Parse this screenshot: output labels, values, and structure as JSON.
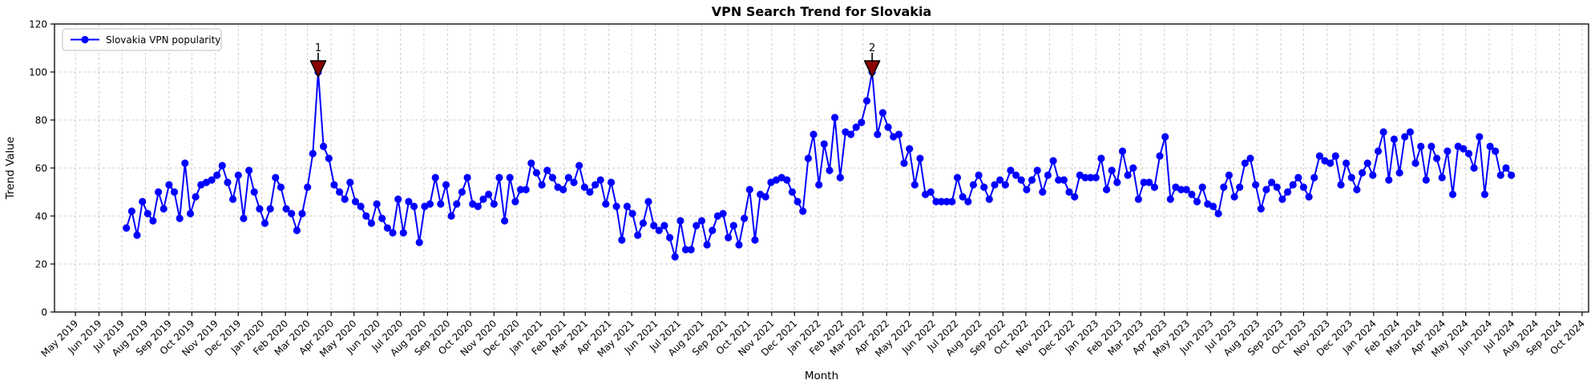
{
  "figure": {
    "title": "VPN Search Trend for Slovakia",
    "xlabel": "Month",
    "ylabel": "Trend Value",
    "legend_label": "Slovakia VPN popularity",
    "colors": {
      "line": "#0000ff",
      "marker": "#0000ff",
      "annotation": "#8b0000",
      "annotation_edge": "#000000",
      "grid": "#c9c9c9",
      "axis": "#000000",
      "legend_border": "#cccccc",
      "background": "#ffffff"
    }
  },
  "chart_data": {
    "type": "line",
    "title": "VPN Search Trend for Slovakia",
    "xlabel": "Month",
    "ylabel": "Trend Value",
    "legend": [
      "Slovakia VPN popularity"
    ],
    "legend_position": "upper left",
    "grid": true,
    "ylim": [
      0,
      120
    ],
    "yticks": [
      0,
      20,
      40,
      60,
      80,
      100,
      120
    ],
    "x_start_date": "2019-07-07",
    "x_interval_days": 7,
    "xtick_labels": [
      "May 2019",
      "Jun 2019",
      "Jul 2019",
      "Aug 2019",
      "Sep 2019",
      "Oct 2019",
      "Nov 2019",
      "Dec 2019",
      "Jan 2020",
      "Feb 2020",
      "Mar 2020",
      "Apr 2020",
      "May 2020",
      "Jun 2020",
      "Jul 2020",
      "Aug 2020",
      "Sep 2020",
      "Oct 2020",
      "Nov 2020",
      "Dec 2020",
      "Jan 2021",
      "Feb 2021",
      "Mar 2021",
      "Apr 2021",
      "May 2021",
      "Jun 2021",
      "Jul 2021",
      "Aug 2021",
      "Sep 2021",
      "Oct 2021",
      "Nov 2021",
      "Dec 2021",
      "Jan 2022",
      "Feb 2022",
      "Mar 2022",
      "Apr 2022",
      "May 2022",
      "Jun 2022",
      "Jul 2022",
      "Aug 2022",
      "Sep 2022",
      "Oct 2022",
      "Nov 2022",
      "Dec 2022",
      "Jan 2023",
      "Feb 2023",
      "Mar 2023",
      "Apr 2023",
      "May 2023",
      "Jun 2023",
      "Jul 2023",
      "Aug 2023",
      "Sep 2023",
      "Oct 2023",
      "Nov 2023",
      "Dec 2023",
      "Jan 2024",
      "Feb 2024",
      "Mar 2024",
      "Apr 2024",
      "May 2024",
      "Jun 2024",
      "Jul 2024",
      "Aug 2024",
      "Sep 2024",
      "Oct 2024"
    ],
    "values": [
      35,
      42,
      32,
      46,
      41,
      38,
      50,
      43,
      53,
      50,
      39,
      62,
      41,
      48,
      53,
      54,
      55,
      57,
      61,
      54,
      47,
      57,
      39,
      59,
      50,
      43,
      37,
      43,
      56,
      52,
      43,
      41,
      34,
      41,
      52,
      66,
      100,
      69,
      64,
      53,
      50,
      47,
      54,
      46,
      44,
      40,
      37,
      45,
      39,
      35,
      33,
      47,
      33,
      46,
      44,
      29,
      44,
      45,
      56,
      45,
      53,
      40,
      45,
      50,
      56,
      45,
      44,
      47,
      49,
      45,
      56,
      38,
      56,
      46,
      51,
      51,
      62,
      58,
      53,
      59,
      56,
      52,
      51,
      56,
      54,
      61,
      52,
      50,
      53,
      55,
      45,
      54,
      44,
      30,
      44,
      41,
      32,
      37,
      46,
      36,
      34,
      36,
      31,
      23,
      38,
      26,
      26,
      36,
      38,
      28,
      34,
      40,
      41,
      31,
      36,
      28,
      39,
      51,
      30,
      49,
      48,
      54,
      55,
      56,
      55,
      50,
      46,
      42,
      64,
      74,
      53,
      70,
      59,
      81,
      56,
      75,
      74,
      77,
      79,
      88,
      100,
      74,
      83,
      77,
      73,
      74,
      62,
      68,
      53,
      64,
      49,
      50,
      46,
      46,
      46,
      46,
      56,
      48,
      46,
      53,
      57,
      52,
      47,
      53,
      55,
      53,
      59,
      57,
      55,
      51,
      55,
      59,
      50,
      57,
      63,
      55,
      55,
      50,
      48,
      57,
      56,
      56,
      56,
      64,
      51,
      59,
      54,
      67,
      57,
      60,
      47,
      54,
      54,
      52,
      65,
      73,
      47,
      52,
      51,
      51,
      49,
      46,
      52,
      45,
      44,
      41,
      52,
      57,
      48,
      52,
      62,
      64,
      53,
      43,
      51,
      54,
      52,
      47,
      50,
      53,
      56,
      52,
      48,
      56,
      65,
      63,
      62,
      65,
      53,
      62,
      56,
      51,
      58,
      62,
      57,
      67,
      75,
      55,
      72,
      58,
      73,
      75,
      62,
      69,
      55,
      69,
      64,
      56,
      67,
      49,
      69,
      68,
      66,
      60,
      73,
      49,
      69,
      67,
      57,
      60,
      57
    ],
    "annotations": [
      {
        "label": "1",
        "index": 36,
        "date": "2020-03-15",
        "value": 100
      },
      {
        "label": "2",
        "index": 140,
        "date": "2022-03-13",
        "value": 100
      }
    ]
  }
}
